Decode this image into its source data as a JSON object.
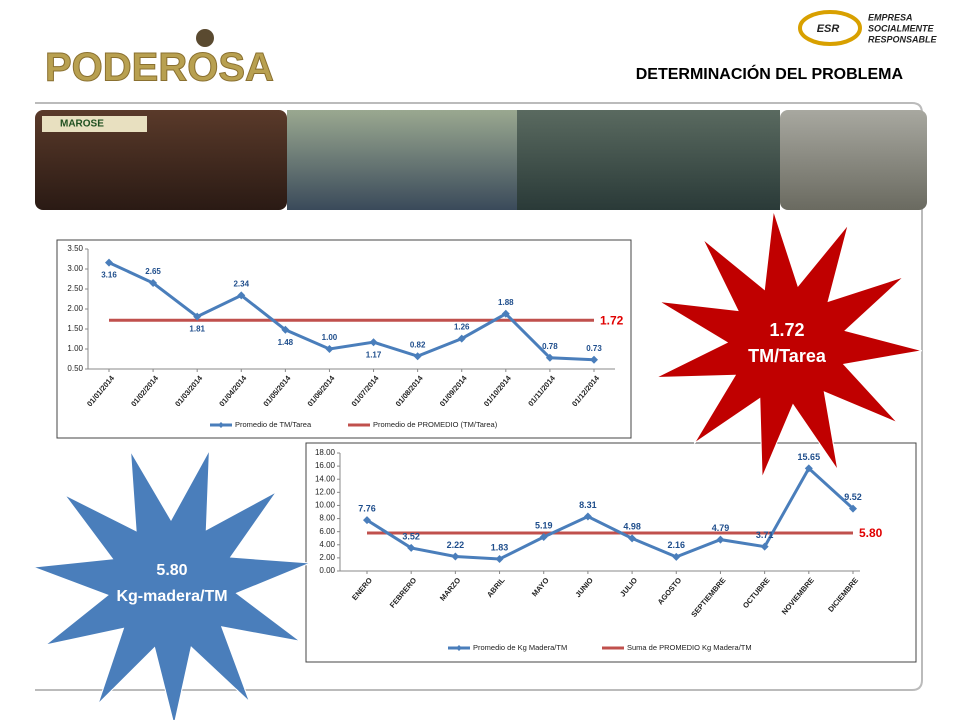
{
  "header": {
    "logo": "PODEROSA",
    "title": "DETERMINACIÓN  DEL PROBLEMA",
    "esr": "ESR",
    "esr_lines": [
      "EMPRESA",
      "SOCIALMENTE",
      "RESPONSABLE"
    ],
    "photo_label": "MAROSE"
  },
  "callouts": [
    {
      "value": "1.72",
      "unit": "TM/Tarea",
      "color": "#c00000"
    },
    {
      "value": "5.80",
      "unit": "Kg-madera/TM",
      "color": "#4a7ebb"
    }
  ],
  "chart_data": [
    {
      "type": "line",
      "categories": [
        "01/01/2014",
        "01/02/2014",
        "01/03/2014",
        "01/04/2014",
        "01/05/2014",
        "01/06/2014",
        "01/07/2014",
        "01/08/2014",
        "01/09/2014",
        "01/10/2014",
        "01/11/2014",
        "01/12/2014"
      ],
      "ylim": [
        0.5,
        3.5
      ],
      "yticks": [
        {
          "value": 0.5,
          "label": "0.50"
        },
        {
          "value": 1,
          "label": "1.00"
        },
        {
          "value": 1.5,
          "label": "1.50"
        },
        {
          "value": 2,
          "label": "2.00"
        },
        {
          "value": 2.5,
          "label": "2.50"
        },
        {
          "value": 3,
          "label": "3.00"
        },
        {
          "value": 3.5,
          "label": "3.50"
        }
      ],
      "series": [
        {
          "name": "Promedio de TM/Tarea",
          "color": "#4a7ebb",
          "values": [
            3.16,
            2.65,
            1.81,
            2.34,
            1.48,
            1,
            1.17,
            0.82,
            1.26,
            1.88,
            0.78,
            0.73
          ],
          "value_labels": [
            "3.16",
            "2.65",
            "1.81",
            "2.34",
            "1.48",
            "1.00",
            "1.17",
            "0.82",
            "1.26",
            "1.88",
            "0.78",
            "0.73"
          ]
        },
        {
          "name": "Promedio de PROMEDIO (TM/Tarea)",
          "color": "#c0504d",
          "values": [
            1.72,
            1.72,
            1.72,
            1.72,
            1.72,
            1.72,
            1.72,
            1.72,
            1.72,
            1.72,
            1.72,
            1.72
          ],
          "end_label": "1.72"
        }
      ]
    },
    {
      "type": "line",
      "categories": [
        "ENERO",
        "FEBRERO",
        "MARZO",
        "ABRIL",
        "MAYO",
        "JUNIO",
        "JULIO",
        "AGOSTO",
        "SEPTIEMBRE",
        "OCTUBRE",
        "NOVIEMBRE",
        "DICIEMBRE"
      ],
      "ylim": [
        0,
        18
      ],
      "yticks": [
        {
          "value": 0,
          "label": "0.00"
        },
        {
          "value": 2,
          "label": "2.00"
        },
        {
          "value": 4,
          "label": "4.00"
        },
        {
          "value": 6,
          "label": "6.00"
        },
        {
          "value": 8,
          "label": "8.00"
        },
        {
          "value": 10,
          "label": "10.00"
        },
        {
          "value": 12,
          "label": "12.00"
        },
        {
          "value": 14,
          "label": "14.00"
        },
        {
          "value": 16,
          "label": "16.00"
        },
        {
          "value": 18,
          "label": "18.00"
        }
      ],
      "series": [
        {
          "name": "Promedio de Kg Madera/TM",
          "color": "#4a7ebb",
          "values": [
            7.76,
            3.52,
            2.22,
            1.83,
            5.19,
            8.31,
            4.98,
            2.16,
            4.79,
            3.71,
            15.65,
            9.52
          ],
          "value_labels": [
            "7.76",
            "3.52",
            "2.22",
            "1.83",
            "5.19",
            "8.31",
            "4.98",
            "2.16",
            "4.79",
            "3.71",
            "15.65",
            "9.52"
          ]
        },
        {
          "name": "Suma de PROMEDIO Kg Madera/TM",
          "color": "#c0504d",
          "values": [
            5.8,
            5.8,
            5.8,
            5.8,
            5.8,
            5.8,
            5.8,
            5.8,
            5.8,
            5.8,
            5.8,
            5.8
          ],
          "end_label": "5.80"
        }
      ]
    }
  ]
}
